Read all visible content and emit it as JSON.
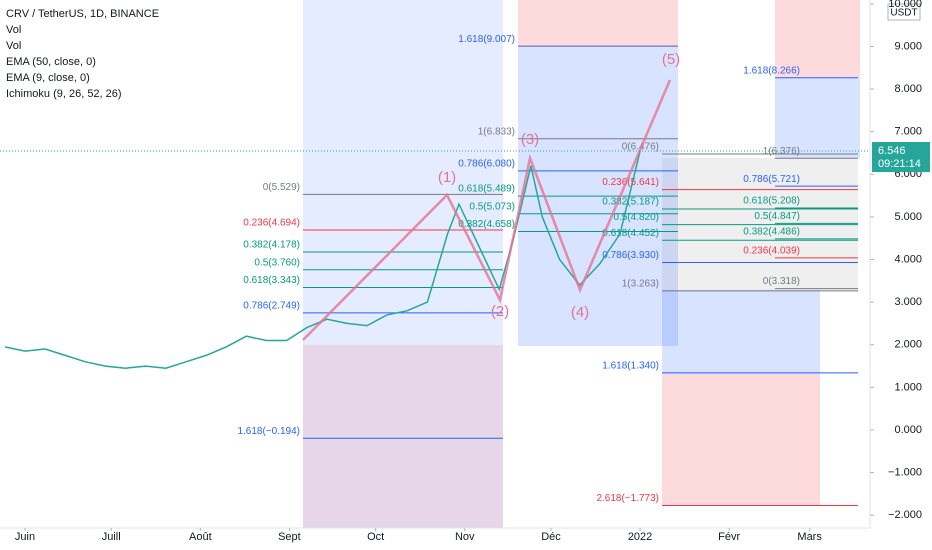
{
  "chart_data": {
    "type": "line",
    "title": "CRV / TetherUS, 1D, BINANCE",
    "indicators": [
      "Vol",
      "Vol",
      "EMA (50, close, 0)",
      "EMA (9, close, 0)",
      "Ichimoku (9, 26, 52, 26)"
    ],
    "currency": "USDT",
    "last_price": {
      "value": 6.546,
      "label": "6.546"
    },
    "countdown": "09:21:14",
    "x": [
      -7,
      0,
      7,
      14,
      21,
      28,
      35,
      42,
      49,
      56,
      63,
      70,
      77,
      84,
      91,
      98,
      105,
      112,
      119,
      126,
      133,
      140,
      147,
      151,
      158,
      165,
      170,
      176,
      180,
      186,
      193,
      200,
      207,
      214
    ],
    "series": [
      {
        "name": "CRV / TetherUS",
        "color": "#26a69a",
        "values": [
          1.95,
          1.85,
          1.9,
          1.75,
          1.6,
          1.5,
          1.45,
          1.5,
          1.45,
          1.6,
          1.75,
          1.95,
          2.2,
          2.1,
          2.1,
          2.4,
          2.6,
          2.5,
          2.45,
          2.7,
          2.8,
          3.0,
          4.6,
          5.3,
          4.3,
          3.3,
          4.5,
          6.2,
          5.0,
          4.0,
          3.4,
          3.9,
          4.6,
          6.546
        ]
      }
    ],
    "xlim": [
      -8.7,
      294
    ],
    "xticks": [
      {
        "value": 0,
        "label": "Juin"
      },
      {
        "value": 30,
        "label": "Juill"
      },
      {
        "value": 61,
        "label": "Août"
      },
      {
        "value": 92,
        "label": "Sept"
      },
      {
        "value": 122,
        "label": "Oct"
      },
      {
        "value": 153,
        "label": "Nov"
      },
      {
        "value": 183,
        "label": "Déc"
      },
      {
        "value": 214,
        "label": "2022"
      },
      {
        "value": 245,
        "label": "Févr"
      },
      {
        "value": 273,
        "label": "Mars"
      }
    ],
    "ylim": [
      -2.3,
      10.09
    ],
    "yticks": [
      {
        "value": 10,
        "label": "10.000"
      },
      {
        "value": 9,
        "label": "9.000"
      },
      {
        "value": 8,
        "label": "8.000"
      },
      {
        "value": 7,
        "label": "7.000"
      },
      {
        "value": 6,
        "label": "6.000"
      },
      {
        "value": 5,
        "label": "5.000"
      },
      {
        "value": 4,
        "label": "4.000"
      },
      {
        "value": 3,
        "label": "3.000"
      },
      {
        "value": 2,
        "label": "2.000"
      },
      {
        "value": 1,
        "label": "1.000"
      },
      {
        "value": 0,
        "label": "0.000"
      },
      {
        "value": -1,
        "label": "−1.000"
      },
      {
        "value": -2,
        "label": "−2.000"
      }
    ],
    "waves": [
      "(1)",
      "(2)",
      "(3)",
      "(4)",
      "(5)"
    ],
    "fib_groups": [
      {
        "levels": [
          {
            "value": 5.529,
            "label": "0(5.529)"
          },
          {
            "value": 4.694,
            "label": "0.236(4.694)"
          },
          {
            "value": 4.178,
            "label": "0.382(4.178)"
          },
          {
            "value": 3.76,
            "label": "0.5(3.760)"
          },
          {
            "value": 3.343,
            "label": "0.618(3.343)"
          },
          {
            "value": 2.749,
            "label": "0.786(2.749)"
          },
          {
            "value": -0.194,
            "label": "1.618(−0.194)"
          }
        ]
      },
      {
        "levels": [
          {
            "value": 9.007,
            "label": "1.618(9.007)"
          },
          {
            "value": 6.833,
            "label": "1(6.833)"
          },
          {
            "value": 6.08,
            "label": "0.786(6.080)"
          },
          {
            "value": 5.489,
            "label": "0.618(5.489)"
          },
          {
            "value": 5.073,
            "label": "0.5(5.073)"
          },
          {
            "value": 4.658,
            "label": "0.382(4.658)"
          }
        ]
      },
      {
        "levels": [
          {
            "value": 6.476,
            "label": "0(6.476)"
          },
          {
            "value": 5.641,
            "label": "0.236(5.641)"
          },
          {
            "value": 5.187,
            "label": "0.382(5.187)"
          },
          {
            "value": 4.82,
            "label": "0.5(4.820)"
          },
          {
            "value": 4.452,
            "label": "0.618(4.452)"
          },
          {
            "value": 3.93,
            "label": "0.786(3.930)"
          },
          {
            "value": 3.263,
            "label": "1(3.263)"
          },
          {
            "value": 1.34,
            "label": "1.618(1.340)"
          },
          {
            "value": -1.773,
            "label": "2.618(−1.773)"
          }
        ]
      },
      {
        "levels": [
          {
            "value": 8.266,
            "label": "1.618(8.266)"
          },
          {
            "value": 6.376,
            "label": "1(6.376)"
          },
          {
            "value": 5.721,
            "label": "0.786(5.721)"
          },
          {
            "value": 5.208,
            "label": "0.618(5.208)"
          },
          {
            "value": 4.847,
            "label": "0.5(4.847)"
          },
          {
            "value": 4.486,
            "label": "0.382(4.486)"
          },
          {
            "value": 4.039,
            "label": "0.236(4.039)"
          },
          {
            "value": 3.318,
            "label": "0(3.318)"
          }
        ]
      }
    ]
  }
}
